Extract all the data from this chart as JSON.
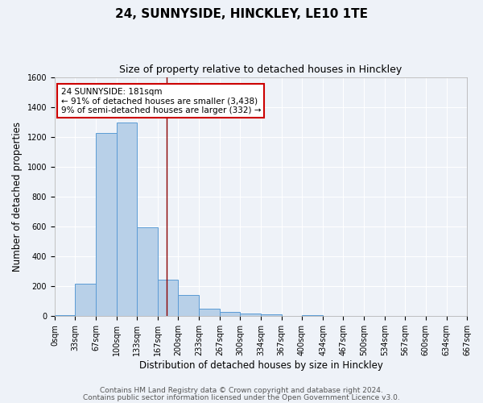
{
  "title": "24, SUNNYSIDE, HINCKLEY, LE10 1TE",
  "subtitle": "Size of property relative to detached houses in Hinckley",
  "xlabel": "Distribution of detached houses by size in Hinckley",
  "ylabel": "Number of detached properties",
  "bin_edges": [
    0,
    33,
    67,
    100,
    133,
    167,
    200,
    233,
    267,
    300,
    334,
    367,
    400,
    434,
    467,
    500,
    534,
    567,
    600,
    634,
    667
  ],
  "counts": [
    5,
    220,
    1225,
    1295,
    595,
    245,
    140,
    50,
    28,
    18,
    10,
    0,
    5,
    0,
    0,
    0,
    0,
    0,
    0,
    0
  ],
  "bar_color": "#b8d0e8",
  "bar_edge_color": "#5b9bd5",
  "marker_x": 181,
  "marker_color": "#8b0000",
  "annotation_title": "24 SUNNYSIDE: 181sqm",
  "annotation_line1": "← 91% of detached houses are smaller (3,438)",
  "annotation_line2": "9% of semi-detached houses are larger (332) →",
  "annotation_box_facecolor": "#ffffff",
  "annotation_box_edgecolor": "#cc0000",
  "ylim": [
    0,
    1600
  ],
  "yticks": [
    0,
    200,
    400,
    600,
    800,
    1000,
    1200,
    1400,
    1600
  ],
  "xlim": [
    0,
    667
  ],
  "footer1": "Contains HM Land Registry data © Crown copyright and database right 2024.",
  "footer2": "Contains public sector information licensed under the Open Government Licence v3.0.",
  "bg_color": "#eef2f8",
  "plot_bg_color": "#eef2f8",
  "grid_color": "#ffffff",
  "title_fontsize": 11,
  "subtitle_fontsize": 9,
  "axis_label_fontsize": 8.5,
  "tick_fontsize": 7,
  "footer_fontsize": 6.5
}
